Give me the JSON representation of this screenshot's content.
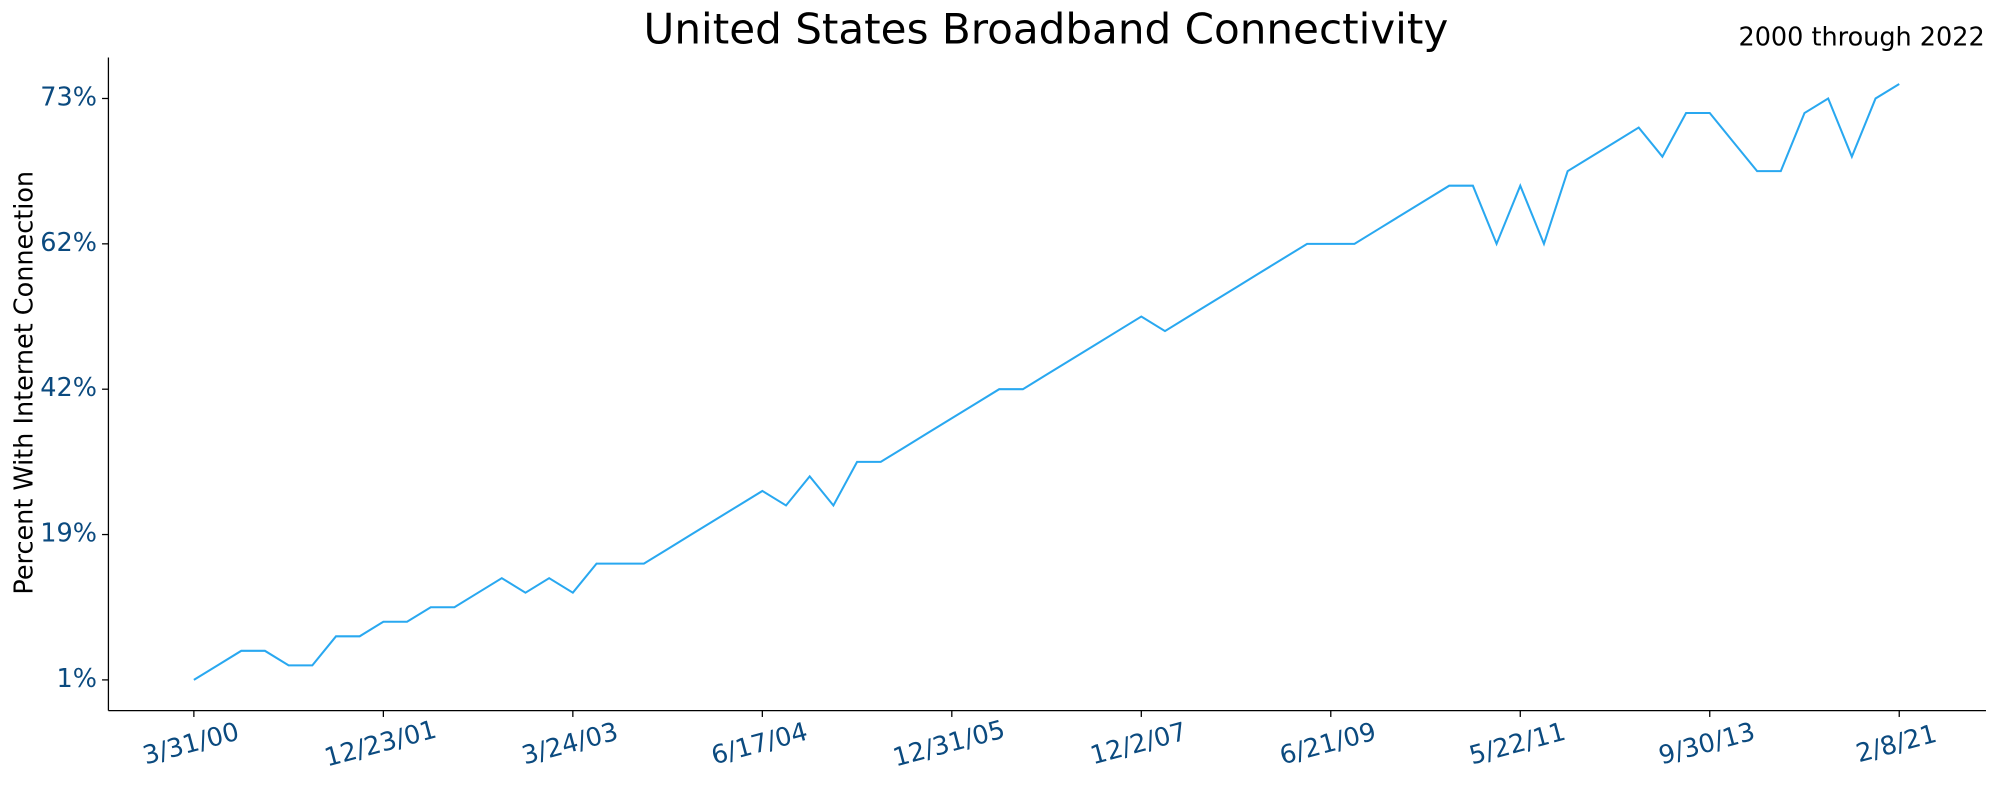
{
  "chart_data": {
    "type": "line",
    "title": "United States Broadband Connectivity",
    "subtitle": "2000 through 2022",
    "y_label": "Percent With Internet Connection",
    "categories": [
      "3/31/00",
      null,
      null,
      null,
      null,
      null,
      null,
      null,
      "12/23/01",
      null,
      null,
      null,
      null,
      null,
      null,
      null,
      "3/24/03",
      null,
      null,
      null,
      null,
      null,
      null,
      null,
      "6/17/04",
      null,
      null,
      null,
      null,
      null,
      null,
      null,
      "12/31/05",
      null,
      null,
      null,
      null,
      null,
      null,
      null,
      "12/2/07",
      null,
      null,
      null,
      null,
      null,
      null,
      null,
      "6/21/09",
      null,
      null,
      null,
      null,
      null,
      null,
      null,
      "5/22/11",
      null,
      null,
      null,
      null,
      null,
      null,
      null,
      "9/30/13",
      null,
      null,
      null,
      null,
      null,
      null,
      null,
      "2/8/21"
    ],
    "series": [
      {
        "color": "#29a8f0",
        "values": [
          1,
          2.8,
          4.6,
          4.6,
          2.8,
          2.8,
          6.4,
          6.4,
          8.2,
          8.2,
          10,
          10,
          11.8,
          13.6,
          11.8,
          13.6,
          11.8,
          15.4,
          15.4,
          15.4,
          17.2,
          19,
          21.3,
          23.6,
          25.9,
          23.6,
          28.2,
          23.6,
          30.5,
          30.5,
          32.8,
          35.1,
          37.4,
          39.7,
          42,
          42,
          44,
          46,
          48,
          50,
          52,
          50,
          52,
          54,
          56,
          58,
          60,
          62,
          62,
          62,
          63.1,
          64.2,
          65.3,
          66.4,
          66.4,
          62,
          66.4,
          62,
          67.5,
          68.6,
          69.7,
          70.8,
          68.6,
          71.9,
          71.9,
          69.7,
          67.5,
          67.5,
          71.9,
          73,
          68.6,
          73,
          74.1
        ]
      }
    ],
    "ylim": [
      -2.8,
      76.1
    ],
    "yticks": [
      {
        "value": 1,
        "label": "1%"
      },
      {
        "value": 19,
        "label": "19%"
      },
      {
        "value": 42,
        "label": "42%"
      },
      {
        "value": 62,
        "label": "62%"
      },
      {
        "value": 73,
        "label": "73%"
      }
    ]
  }
}
